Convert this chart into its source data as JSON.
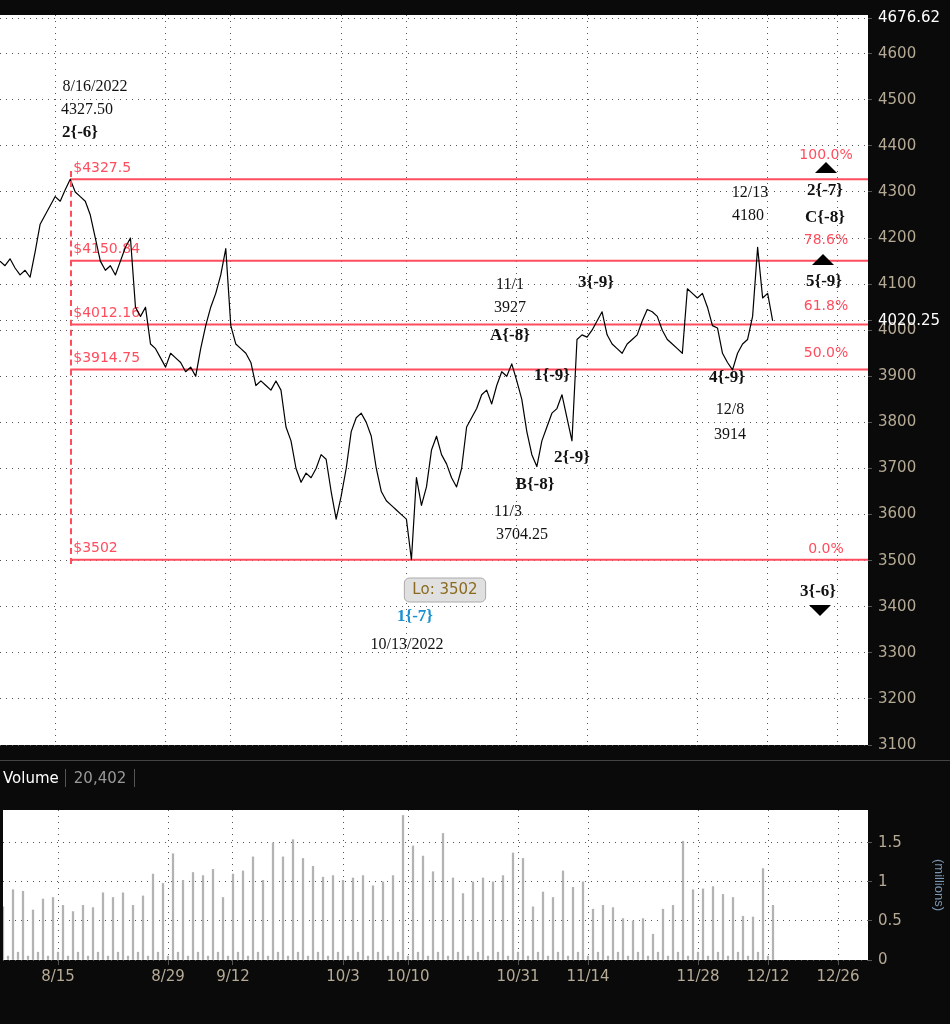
{
  "chart_data": [
    {
      "type": "line",
      "tick_labels": "y",
      "grid": true,
      "legend": false,
      "marker": "none",
      "line_style": "solid",
      "categories": [
        null,
        null,
        null,
        null,
        null,
        null,
        null,
        null,
        null,
        null,
        null,
        null,
        null,
        null,
        null,
        null,
        null,
        null,
        null,
        null,
        null,
        null,
        null,
        null,
        null,
        null,
        null,
        null,
        null,
        null,
        null,
        null,
        null,
        null,
        null,
        null,
        null,
        null,
        null,
        null,
        null,
        null,
        null,
        null,
        null,
        null,
        null,
        null,
        null,
        null,
        null,
        null,
        null,
        null,
        null,
        null,
        null,
        null,
        null,
        null,
        null,
        null,
        null,
        null,
        null,
        null,
        null,
        null,
        null,
        null,
        null,
        null,
        null,
        null,
        null,
        null,
        null,
        null,
        null,
        null,
        null,
        null,
        null,
        null,
        null,
        null,
        null,
        null,
        null,
        null,
        null,
        null,
        null,
        null,
        null,
        null,
        null,
        null,
        null,
        null,
        null,
        null,
        null,
        null,
        null,
        null,
        null,
        null,
        null,
        null,
        null,
        null,
        null,
        null,
        null,
        null,
        null,
        null,
        null,
        null,
        null,
        null,
        null,
        null,
        null,
        null,
        null,
        null,
        null,
        null,
        null,
        null,
        null,
        null,
        null,
        null,
        null,
        null,
        null,
        null,
        null,
        null,
        null,
        null,
        null,
        null,
        null,
        null,
        null,
        null,
        null,
        null,
        null,
        null,
        null,
        null,
        null,
        null,
        null,
        null,
        null,
        null,
        null,
        null,
        null,
        null,
        null,
        null,
        null,
        null,
        null,
        null,
        null,
        null
      ],
      "ylim": [
        3100,
        4684
      ],
      "yticks": [
        3100,
        3200,
        3300,
        3400,
        3500,
        3600,
        3700,
        3800,
        3900,
        4000,
        {
          "value": 4020.25,
          "label": "4020.25"
        },
        4100,
        4200,
        4300,
        4400,
        4500,
        4600,
        {
          "value": 4676.62,
          "label": "4676.62"
        }
      ],
      "series": [
        {
          "color": "#000000",
          "values": [
            4150,
            4140,
            4155,
            4135,
            4120,
            4130,
            4115,
            4170,
            4230,
            4250,
            4270,
            4290,
            4280,
            4305,
            4327.5,
            4300,
            4290,
            4280,
            4250,
            4200,
            4150,
            4130,
            4140,
            4120,
            4150,
            4180,
            4200,
            4050,
            4030,
            4050,
            3970,
            3960,
            3940,
            3920,
            3950,
            3940,
            3930,
            3910,
            3920,
            3900,
            3960,
            4010,
            4050,
            4080,
            4120,
            4177,
            4010,
            3970,
            3960,
            3950,
            3930,
            3880,
            3890,
            3880,
            3870,
            3890,
            3870,
            3790,
            3760,
            3700,
            3670,
            3690,
            3680,
            3700,
            3730,
            3720,
            3650,
            3590,
            3640,
            3700,
            3780,
            3810,
            3820,
            3800,
            3770,
            3700,
            3650,
            3630,
            3620,
            3610,
            3600,
            3590,
            3502,
            3680,
            3620,
            3660,
            3740,
            3770,
            3730,
            3710,
            3680,
            3660,
            3700,
            3790,
            3810,
            3830,
            3860,
            3870,
            3840,
            3880,
            3910,
            3900,
            3927,
            3890,
            3850,
            3780,
            3730,
            3704.25,
            3760,
            3790,
            3820,
            3830,
            3860,
            3810,
            3760,
            3980,
            3990,
            3985,
            4000,
            4020,
            4040,
            3990,
            3970,
            3960,
            3950,
            3970,
            3980,
            3990,
            4020,
            4045,
            4040,
            4030,
            4000,
            3980,
            3970,
            3960,
            3950,
            4090,
            4080,
            4070,
            4080,
            4050,
            4010,
            4005,
            3950,
            3930,
            3914,
            3950,
            3970,
            3980,
            4030,
            4180,
            4070,
            4080,
            4020.25,
            null,
            null,
            null,
            null,
            null,
            null,
            null,
            null,
            null,
            null,
            null,
            null,
            null,
            null,
            null,
            null,
            null,
            null,
            null
          ]
        }
      ],
      "ref_lines": [
        {
          "axis": "y",
          "value": 4327.5,
          "label": "$4327.5",
          "color": "#ff4d5e",
          "line_style": "solid"
        },
        {
          "axis": "y",
          "value": 4150.84,
          "label": "$4150.84",
          "color": "#ff4d5e",
          "line_style": "solid"
        },
        {
          "axis": "y",
          "value": 4012.16,
          "label": "$4012.16",
          "color": "#ff4d5e",
          "line_style": "solid"
        },
        {
          "axis": "y",
          "value": 3914.75,
          "label": "$3914.75",
          "color": "#ff4d5e",
          "line_style": "solid"
        },
        {
          "axis": "y",
          "value": 3502,
          "label": "$3502",
          "color": "#ff4d5e",
          "line_style": "solid"
        }
      ],
      "annotations": [
        "8/16/2022",
        "4327.50",
        "2{-6}",
        "11/1",
        "3927",
        "A{-8}",
        "1{-9}",
        "2{-9}",
        "B{-8}",
        "11/3",
        "3704.25",
        "3{-9}",
        "12/13",
        "4180",
        "4{-9}",
        "12/8",
        "3914",
        "2{-7}",
        "C{-8}",
        "5{-9}",
        "3{-6}",
        "1{-7}",
        "10/13/2022",
        "Lo: 3502",
        "100.0%",
        "78.6%",
        "61.8%",
        "50.0%",
        "0.0%"
      ]
    },
    {
      "type": "bar",
      "title": "Volume",
      "subtitle": "20,402",
      "ylabel": "(millions)",
      "grid": true,
      "legend": false,
      "categories": [
        null,
        null,
        null,
        null,
        null,
        null,
        null,
        null,
        null,
        null,
        null,
        "8/15",
        null,
        null,
        null,
        null,
        null,
        null,
        null,
        null,
        null,
        null,
        null,
        null,
        null,
        null,
        null,
        null,
        null,
        null,
        null,
        null,
        null,
        "8/29",
        null,
        null,
        null,
        null,
        null,
        null,
        null,
        null,
        null,
        null,
        null,
        null,
        "9/12",
        null,
        null,
        null,
        null,
        null,
        null,
        null,
        null,
        null,
        null,
        null,
        null,
        null,
        null,
        null,
        null,
        null,
        null,
        null,
        null,
        null,
        "10/3",
        null,
        null,
        null,
        null,
        null,
        null,
        null,
        null,
        null,
        null,
        null,
        null,
        "10/10",
        null,
        null,
        null,
        null,
        null,
        null,
        null,
        null,
        null,
        null,
        null,
        null,
        null,
        null,
        null,
        null,
        null,
        null,
        null,
        null,
        null,
        "10/31",
        null,
        null,
        null,
        null,
        null,
        null,
        null,
        null,
        null,
        null,
        null,
        null,
        null,
        "11/14",
        null,
        null,
        null,
        null,
        null,
        null,
        null,
        null,
        null,
        null,
        null,
        null,
        null,
        null,
        null,
        null,
        null,
        null,
        null,
        null,
        null,
        "11/28",
        null,
        null,
        null,
        null,
        null,
        null,
        null,
        null,
        null,
        null,
        null,
        null,
        null,
        "12/12",
        null,
        null,
        null,
        null,
        null,
        null,
        null,
        null,
        null,
        null,
        null,
        null,
        null,
        "12/26",
        null,
        null,
        null,
        null,
        null,
        null
      ],
      "ylim": [
        0,
        1.92
      ],
      "yticks": [
        0,
        0.5,
        1,
        1.5
      ],
      "series": [
        {
          "color": "#b3b3b3",
          "values": [
            0.68,
            0.05,
            0.9,
            0.1,
            0.88,
            0.05,
            0.64,
            0.1,
            0.78,
            0.05,
            0.8,
            0.1,
            0.7,
            0.05,
            0.62,
            0.1,
            0.7,
            0.05,
            0.67,
            0.1,
            0.86,
            0.05,
            0.8,
            0.1,
            0.86,
            0.05,
            0.7,
            0.1,
            0.82,
            0.05,
            1.1,
            0.1,
            0.98,
            0.05,
            1.36,
            0.1,
            1.02,
            0.05,
            1.12,
            0.1,
            1.08,
            0.05,
            1.16,
            0.1,
            0.8,
            0.05,
            1.1,
            0.1,
            1.14,
            0.05,
            1.32,
            0.1,
            1.02,
            0.05,
            1.5,
            0.1,
            1.32,
            0.05,
            1.54,
            0.1,
            1.3,
            0.05,
            1.2,
            0.1,
            1.06,
            0.05,
            1.08,
            0.1,
            1.02,
            0.05,
            1.05,
            0.1,
            1.08,
            0.05,
            0.95,
            0.1,
            1.0,
            0.05,
            1.08,
            0.1,
            1.85,
            0.05,
            1.46,
            0.1,
            1.33,
            0.05,
            1.13,
            0.1,
            1.62,
            0.05,
            1.05,
            0.1,
            0.85,
            0.05,
            1.0,
            0.1,
            1.05,
            0.05,
            1.0,
            0.1,
            1.08,
            0.05,
            1.37,
            0.1,
            1.3,
            0.05,
            0.68,
            0.1,
            0.87,
            0.05,
            0.8,
            0.1,
            1.14,
            0.05,
            0.93,
            0.1,
            1.0,
            0.05,
            0.65,
            0.1,
            0.7,
            0.05,
            0.67,
            0.1,
            0.53,
            0.05,
            0.5,
            0.1,
            0.53,
            0.05,
            0.33,
            0.1,
            0.65,
            0.05,
            0.7,
            0.1,
            1.52,
            0.05,
            0.9,
            0.1,
            0.91,
            0.05,
            0.94,
            0.1,
            0.84,
            0.05,
            0.8,
            0.1,
            0.56,
            0.05,
            0.55,
            0.1,
            1.17,
            0.05,
            0.7,
            null,
            null,
            null,
            null,
            null,
            null,
            null,
            null,
            null,
            null,
            null,
            null,
            null,
            null,
            null,
            null,
            null,
            null,
            null
          ]
        }
      ]
    }
  ]
}
